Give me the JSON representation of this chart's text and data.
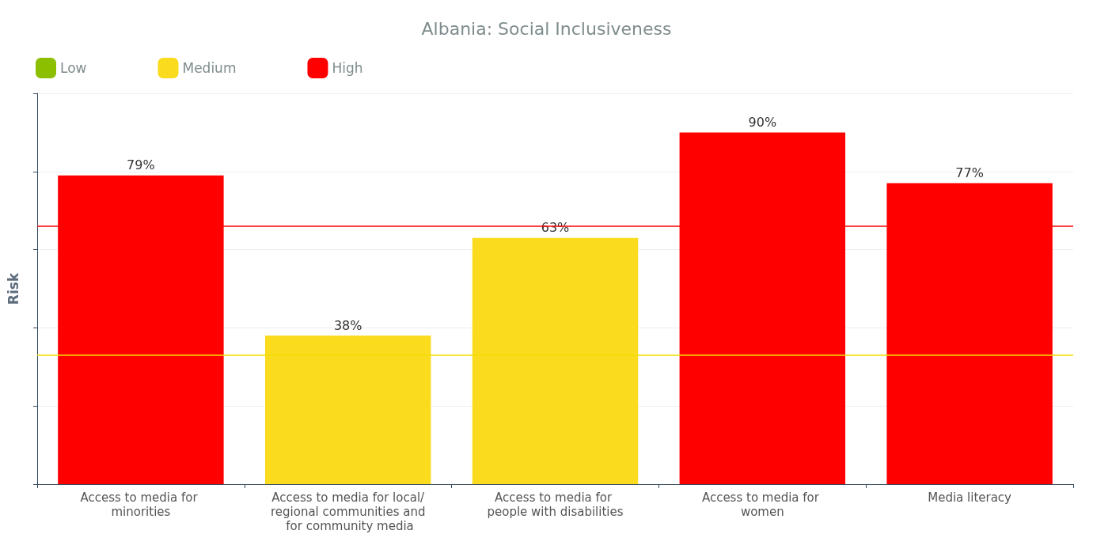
{
  "chart_data": {
    "type": "bar",
    "title": "Albania: Social Inclusiveness",
    "ylabel": "Risk",
    "categories": [
      "Access to media for minorities",
      "Access to media for local/regional communities and for community media",
      "Access to media for people with disabilities",
      "Access to media for women",
      "Media literacy"
    ],
    "series": [
      {
        "name": "Low",
        "color": "#8cbf00",
        "values": [
          null,
          null,
          null,
          null,
          null
        ]
      },
      {
        "name": "Medium",
        "color": "#fadb1e",
        "values": [
          null,
          38,
          63,
          null,
          null
        ],
        "value_labels": [
          null,
          "38%",
          "63%",
          null,
          null
        ]
      },
      {
        "name": "High",
        "color": "#ff0000",
        "values": [
          79,
          null,
          null,
          90,
          77
        ],
        "value_labels": [
          "79%",
          null,
          null,
          "90%",
          "77%"
        ]
      }
    ],
    "tick_labels": "x",
    "ref_lines": [
      {
        "axis": "y",
        "value": 66,
        "label": null,
        "color": "#ff0000",
        "line_style": "solid"
      },
      {
        "axis": "y",
        "value": 33,
        "label": null,
        "color": "#f2dc00",
        "line_style": "solid"
      }
    ],
    "grid": "y",
    "legend": "top left"
  }
}
